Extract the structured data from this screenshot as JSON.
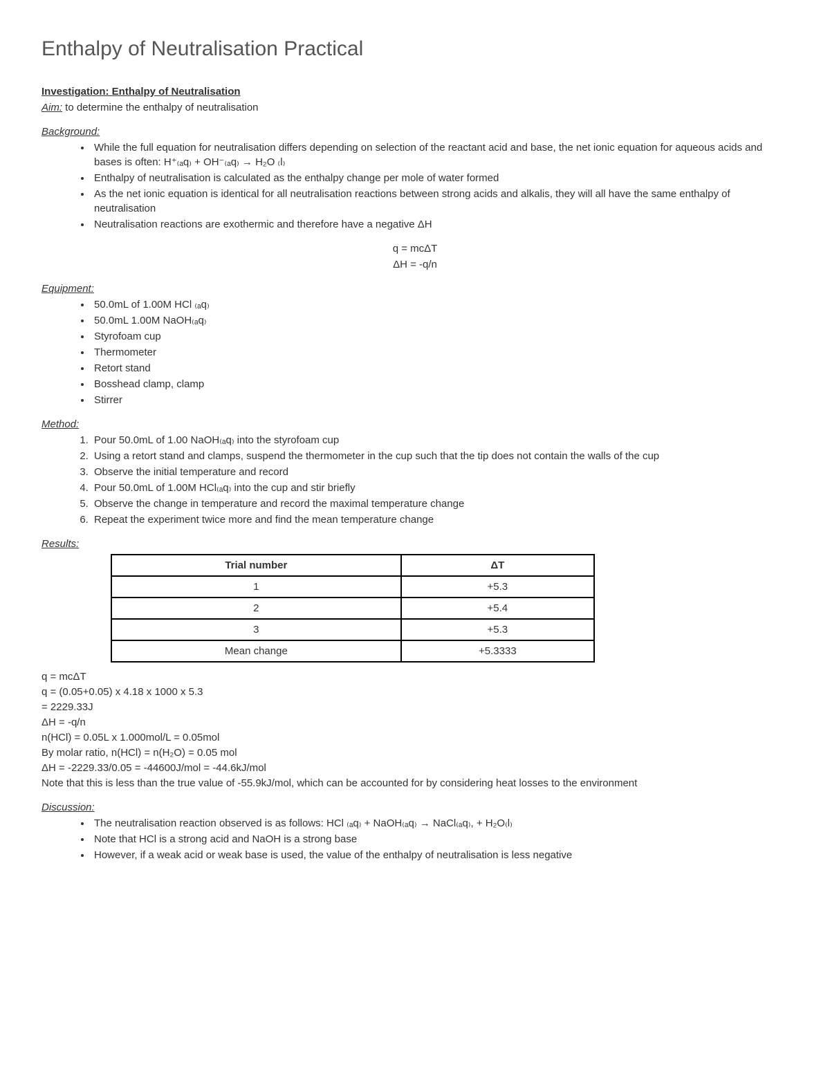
{
  "title": "Enthalpy of Neutralisation Practical",
  "investigation_title": "Investigation: Enthalpy of Neutralisation",
  "aim_label": "Aim:",
  "aim_text": " to determine the enthalpy of neutralisation",
  "background": {
    "heading": "Background:",
    "items": [
      "While the full equation for neutralisation differs depending on selection of the reactant acid and base, the net ionic equation for aqueous acids and bases is often: H⁺₍ₐq₎ + OH⁻₍ₐq₎ → H₂O ₍l₎",
      "Enthalpy of neutralisation is calculated as the enthalpy change per mole of water formed",
      "As the net ionic equation is identical for all neutralisation reactions between strong acids and alkalis, they will all have the same enthalpy of neutralisation",
      "Neutralisation reactions are exothermic and therefore have a negative ΔH"
    ],
    "eq1": "q = mcΔT",
    "eq2": "ΔH = -q/n"
  },
  "equipment": {
    "heading": "Equipment:",
    "items": [
      "50.0mL of 1.00M HCl ₍ₐq₎",
      "50.0mL 1.00M NaOH₍ₐq₎",
      "Styrofoam cup",
      "Thermometer",
      "Retort stand",
      "Bosshead clamp, clamp",
      "Stirrer"
    ]
  },
  "method": {
    "heading": "Method:",
    "items": [
      "Pour 50.0mL of 1.00 NaOH₍ₐq₎ into the styrofoam cup",
      "Using a retort stand and clamps, suspend the thermometer in the cup such that the tip does not contain the walls of the cup",
      "Observe the initial temperature and record",
      "Pour 50.0mL of 1.00M HCl₍ₐq₎ into the cup and stir briefly",
      "Observe the change in temperature and record the maximal temperature change",
      "Repeat the experiment twice more and find the mean temperature change"
    ]
  },
  "results": {
    "heading": "Results:",
    "col1": "Trial number",
    "col2": "ΔT",
    "rows": [
      [
        "1",
        "+5.3"
      ],
      [
        "2",
        "+5.4"
      ],
      [
        "3",
        "+5.3"
      ],
      [
        "Mean change",
        "+5.3333"
      ]
    ]
  },
  "calc": {
    "l1": "q = mcΔT",
    "l2": "q = (0.05+0.05) x 4.18 x 1000 x 5.3",
    "l3": "   = 2229.33J",
    "l4": "ΔH = -q/n",
    "l5": "n(HCl) = 0.05L x 1.000mol/L = 0.05mol",
    "l6": "By molar ratio, n(HCl) = n(H₂O) = 0.05 mol",
    "l7": "ΔH = -2229.33/0.05 = -44600J/mol = -44.6kJ/mol",
    "l8": "Note that this is less than the true value of -55.9kJ/mol, which can be accounted for by considering heat losses to the environment"
  },
  "discussion": {
    "heading": "Discussion:",
    "items": [
      "The neutralisation reaction observed is as follows: HCl ₍ₐq₎ + NaOH₍ₐq₎ → NaCl₍ₐq₎, + H₂O₍l₎",
      "Note that HCl is a strong acid and NaOH is a strong base",
      "However, if a weak acid or weak base is used, the value of the enthalpy of neutralisation is less negative"
    ]
  }
}
